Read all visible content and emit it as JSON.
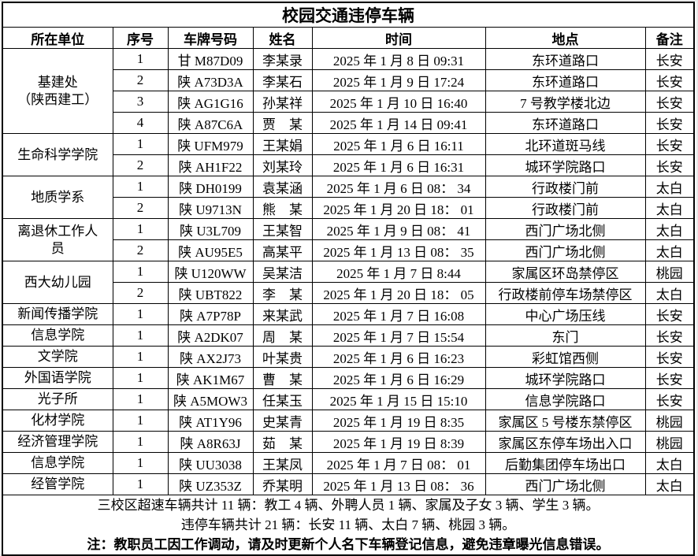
{
  "title": "校园交通违停车辆",
  "columns": [
    {
      "key": "unit",
      "label": "所在单位"
    },
    {
      "key": "no",
      "label": "序号"
    },
    {
      "key": "plate",
      "label": "车牌号码"
    },
    {
      "key": "name",
      "label": "姓名"
    },
    {
      "key": "time",
      "label": "时间"
    },
    {
      "key": "location",
      "label": "地点"
    },
    {
      "key": "remark",
      "label": "备注"
    }
  ],
  "groups": [
    {
      "unit": "基建处\n（陕西建工）",
      "rows": [
        {
          "no": "1",
          "plate": "甘 M87D09",
          "name": "李某录",
          "time": "2025 年 1 月 8 日  09:31",
          "location": "东环道路口",
          "remark": "长安"
        },
        {
          "no": "2",
          "plate": "陕 A73D3A",
          "name": "李某石",
          "time": "2025 年 1 月 9 日  17:24",
          "location": "东环道路口",
          "remark": "长安"
        },
        {
          "no": "3",
          "plate": "陕 AG1G16",
          "name": "孙某祥",
          "time": "2025 年 1 月 10 日  16:40",
          "location": "7 号教学楼北边",
          "remark": "长安"
        },
        {
          "no": "4",
          "plate": "陕 A87C6A",
          "name": "贾　某",
          "time": "2025 年 1 月 14 日  09:41",
          "location": "东环道路口",
          "remark": "长安"
        }
      ]
    },
    {
      "unit": "生命科学学院",
      "rows": [
        {
          "no": "1",
          "plate": "陕 UFM979",
          "name": "王某娟",
          "time": "2025 年 1 月 6 日  16:11",
          "location": "北环道斑马线",
          "remark": "长安"
        },
        {
          "no": "2",
          "plate": "陕 AH1F22",
          "name": "刘某玲",
          "time": "2025 年 1 月 6 日  16:31",
          "location": "城环学院路口",
          "remark": "长安"
        }
      ]
    },
    {
      "unit": "地质学系",
      "rows": [
        {
          "no": "1",
          "plate": "陕 DH0199",
          "name": "袁某涵",
          "time": "2025 年 1 月 6 日 08： 34",
          "location": "行政楼门前",
          "remark": "太白"
        },
        {
          "no": "2",
          "plate": "陕 U9713N",
          "name": "熊　某",
          "time": "2025 年 1 月 20 日 18： 01",
          "location": "行政楼门前",
          "remark": "太白"
        }
      ]
    },
    {
      "unit": "离退休工作人\n员",
      "rows": [
        {
          "no": "1",
          "plate": "陕 U3L709",
          "name": "王某智",
          "time": "2025 年 1 月 9 日 08： 41",
          "location": "西门广场北侧",
          "remark": "太白"
        },
        {
          "no": "2",
          "plate": "陕 AU95E5",
          "name": "高某平",
          "time": "2025 年 1 月 13 日 08： 35",
          "location": "西门广场北侧",
          "remark": "太白"
        }
      ]
    },
    {
      "unit": "西大幼儿园",
      "rows": [
        {
          "no": "1",
          "plate": "陕 U120WW",
          "name": "吴某洁",
          "time": "2025 年 1 月 7 日 8:44",
          "location": "家属区环岛禁停区",
          "remark": "桃园"
        },
        {
          "no": "2",
          "plate": "陕 UBT822",
          "name": "李　某",
          "time": "2025 年 1 月 20 日 18： 05",
          "location": "行政楼前停车场禁停区",
          "remark": "太白"
        }
      ]
    },
    {
      "unit": "新闻传播学院",
      "rows": [
        {
          "no": "1",
          "plate": "陕 A7P78P",
          "name": "来某武",
          "time": "2025 年 1 月 7 日  16:08",
          "location": "中心广场压线",
          "remark": "长安"
        }
      ]
    },
    {
      "unit": "信息学院",
      "rows": [
        {
          "no": "1",
          "plate": "陕 A2DK07",
          "name": "周　某",
          "time": "2025 年 1 月 7 日  15:54",
          "location": "东门",
          "remark": "长安"
        }
      ]
    },
    {
      "unit": "文学院",
      "rows": [
        {
          "no": "1",
          "plate": "陕 AX2J73",
          "name": "叶某贵",
          "time": "2025 年 1 月 6 日  16:23",
          "location": "彩虹馆西侧",
          "remark": "长安"
        }
      ]
    },
    {
      "unit": "外国语学院",
      "rows": [
        {
          "no": "1",
          "plate": "陕 AK1M67",
          "name": "曹　某",
          "time": "2025 年 1 月 6 日  16:29",
          "location": "城环学院路口",
          "remark": "长安"
        }
      ]
    },
    {
      "unit": "光子所",
      "rows": [
        {
          "no": "1",
          "plate": "陕 A5MOW3",
          "name": "任某玉",
          "time": "2025 年 1 月 15 日  15:10",
          "location": "信息学院路口",
          "remark": "长安"
        }
      ]
    },
    {
      "unit": "化材学院",
      "rows": [
        {
          "no": "1",
          "plate": "陕 AT1Y96",
          "name": "史某青",
          "time": "2025 年 1 月 19 日 8:35",
          "location": "家属区 5 号楼东禁停区",
          "remark": "桃园"
        }
      ]
    },
    {
      "unit": "经济管理学院",
      "rows": [
        {
          "no": "1",
          "plate": "陕 A8R63J",
          "name": "茹　某",
          "time": "2025 年 1 月 19 日 8:39",
          "location": "家属区东停车场出入口",
          "remark": "桃园"
        }
      ]
    },
    {
      "unit": "信息学院",
      "rows": [
        {
          "no": "1",
          "plate": "陕 UU3038",
          "name": "王某凤",
          "time": "2025 年 1 月 7 日 08： 01",
          "location": "后勤集团停车场出口",
          "remark": "太白"
        }
      ]
    },
    {
      "unit": "经管学院",
      "rows": [
        {
          "no": "1",
          "plate": "陕 UZ353Z",
          "name": "乔某明",
          "time": "2025 年 1 月 13 日 08： 36",
          "location": "西门广场北侧",
          "remark": "太白"
        }
      ]
    }
  ],
  "footer": {
    "speeding_summary": "三校区超速车辆共计 11 辆：教工 4 辆、外聘人员 1 辆、家属及子女 3 辆、学生 3 辆。",
    "parking_summary": "违停车辆共计 21 辆：长安 11 辆、太白 7 辆、桃园 3 辆。",
    "note": "注：教职员工因工作调动，请及时更新个人名下车辆登记信息，避免违章曝光信息错误。"
  },
  "colors": {
    "text": "#000000",
    "border": "#000000",
    "background": "#ffffff"
  }
}
